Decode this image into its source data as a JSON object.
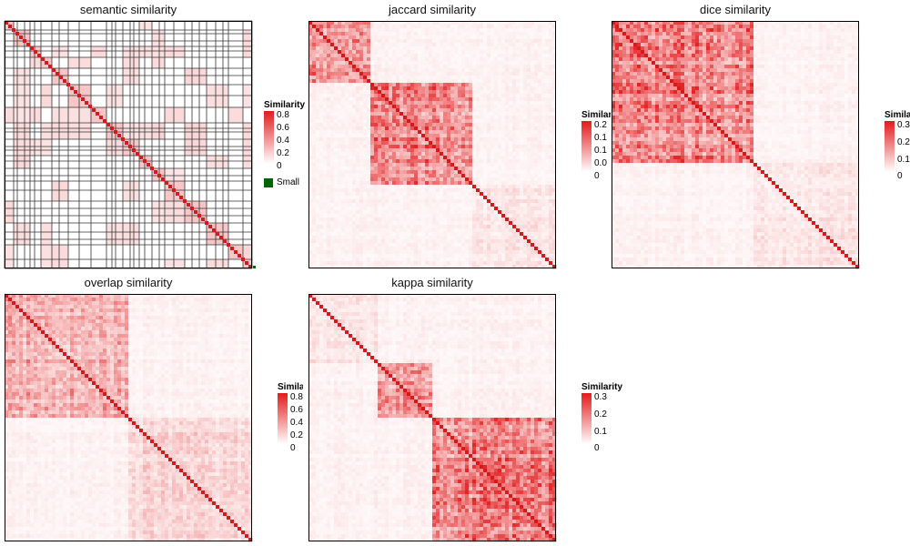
{
  "chart_data": [
    {
      "type": "heatmap",
      "title": "semantic similarity",
      "legend": {
        "title": "Similarity",
        "ticks": [
          "0.8",
          "0.6",
          "0.4",
          "0.2",
          "0"
        ],
        "small_label": "Small",
        "small_color": "#006400"
      },
      "color_range": [
        0,
        0.8
      ],
      "low_color": "#ffffff",
      "high_color": "#e31a1c"
    },
    {
      "type": "heatmap",
      "title": "jaccard similarity",
      "legend": {
        "title": "Similarity",
        "ticks": [
          "0.2",
          "0.1",
          "0.1",
          "0.0",
          "0"
        ]
      },
      "color_range": [
        0,
        0.25
      ],
      "low_color": "#ffffff",
      "high_color": "#e31a1c"
    },
    {
      "type": "heatmap",
      "title": "dice similarity",
      "legend": {
        "title": "Similarity",
        "ticks": [
          "0.3",
          "0.2",
          "0.1",
          "0"
        ]
      },
      "color_range": [
        0,
        0.3
      ],
      "low_color": "#ffffff",
      "high_color": "#e31a1c"
    },
    {
      "type": "heatmap",
      "title": "overlap similarity",
      "legend": {
        "title": "Similarity",
        "ticks": [
          "0.8",
          "0.6",
          "0.4",
          "0.2",
          "0"
        ]
      },
      "color_range": [
        0,
        0.8
      ],
      "low_color": "#ffffff",
      "high_color": "#e31a1c"
    },
    {
      "type": "heatmap",
      "title": "kappa similarity",
      "legend": {
        "title": "Similarity",
        "ticks": [
          "0.3",
          "0.2",
          "0.1",
          "0"
        ]
      },
      "color_range": [
        0,
        0.3
      ],
      "low_color": "#ffffff",
      "high_color": "#e31a1c"
    }
  ],
  "colors": {
    "border": "#000000",
    "diagonal": "#d7191c",
    "grid_lines": "#333333"
  }
}
